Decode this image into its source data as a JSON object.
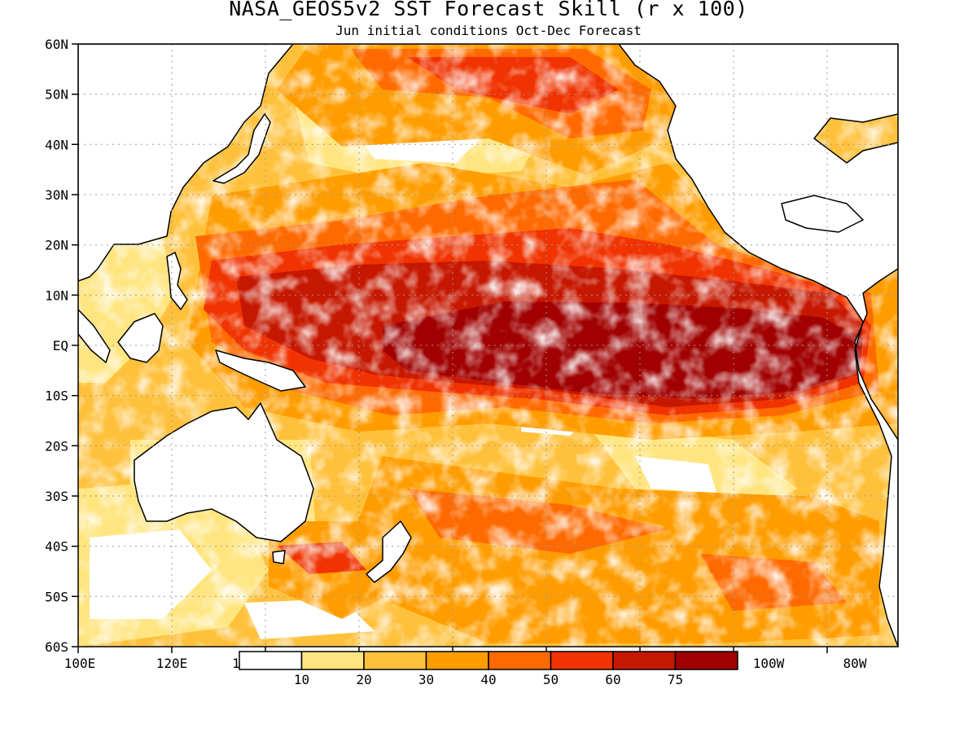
{
  "title": "NASA_GEOS5v2 SST Forecast Skill (r x 100)",
  "subtitle": "Jun initial conditions  Oct-Dec Forecast",
  "map": {
    "lon_range": [
      "100E",
      "75W"
    ],
    "lat_range": [
      "60S",
      "60N"
    ],
    "lat_ticks": [
      "60N",
      "50N",
      "40N",
      "30N",
      "20N",
      "10N",
      "EQ",
      "10S",
      "20S",
      "30S",
      "40S",
      "50S",
      "60S"
    ],
    "lon_ticks": [
      "100E",
      "120E",
      "1",
      "100W",
      "80W"
    ],
    "grid": "dotted",
    "colors": {
      "land": "#ffffff",
      "coastline": "#000000",
      "grid": "#9a9a9a"
    }
  },
  "legend": {
    "placement": "bottom-center",
    "bins": [
      {
        "color": "#ffffff"
      },
      {
        "color": "#ffe57f"
      },
      {
        "color": "#ffc13c"
      },
      {
        "color": "#ff9d00"
      },
      {
        "color": "#ff6a00"
      },
      {
        "color": "#f03300"
      },
      {
        "color": "#c61700"
      },
      {
        "color": "#a00000"
      }
    ],
    "tick_labels": [
      "10",
      "20",
      "30",
      "40",
      "50",
      "60",
      "75"
    ]
  }
}
